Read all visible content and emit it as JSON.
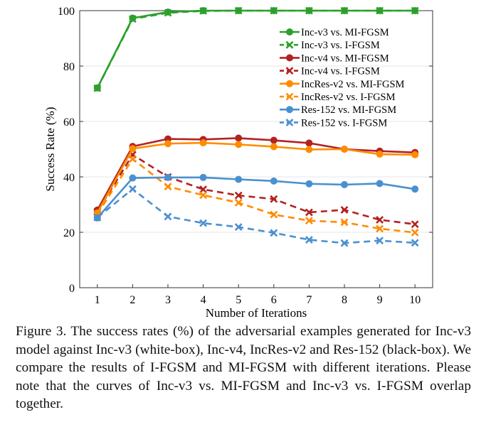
{
  "chart_data": {
    "type": "line",
    "xlabel": "Number of Iterations",
    "ylabel": "Success Rate (%)",
    "x": [
      1,
      2,
      3,
      4,
      5,
      6,
      7,
      8,
      9,
      10
    ],
    "xlim": [
      0.5,
      10.5
    ],
    "ylim": [
      0,
      100
    ],
    "xticks": [
      "1",
      "2",
      "3",
      "4",
      "5",
      "6",
      "7",
      "8",
      "9",
      "10"
    ],
    "yticks": [
      "0",
      "20",
      "40",
      "60",
      "80",
      "100"
    ],
    "grid": true,
    "legend": "top-right",
    "series": [
      {
        "name": "Inc-v3 vs. MI-FGSM",
        "color": "#2ca02c",
        "dash": false,
        "marker": "circle",
        "values": [
          72.1,
          97.3,
          99.5,
          100,
          100,
          100,
          100,
          100,
          100,
          100
        ]
      },
      {
        "name": "Inc-v3 vs. I-FGSM",
        "color": "#2ca02c",
        "dash": true,
        "marker": "x",
        "values": [
          72.0,
          97.0,
          99.2,
          99.9,
          100,
          100,
          100,
          100,
          100,
          100
        ]
      },
      {
        "name": "Inc-v4 vs. MI-FGSM",
        "color": "#b22222",
        "dash": false,
        "marker": "circle",
        "values": [
          28.0,
          51.0,
          53.7,
          53.5,
          54.0,
          53.2,
          52.2,
          50.0,
          49.3,
          48.8
        ]
      },
      {
        "name": "Inc-v4 vs. I-FGSM",
        "color": "#b22222",
        "dash": true,
        "marker": "x",
        "values": [
          27.5,
          48.0,
          40.0,
          35.5,
          33.3,
          32.0,
          27.2,
          28.1,
          24.5,
          22.9
        ]
      },
      {
        "name": "IncRes-v2 vs. MI-FGSM",
        "color": "#ff8c00",
        "dash": false,
        "marker": "circle",
        "values": [
          27.0,
          50.2,
          52.0,
          52.3,
          51.7,
          50.9,
          49.9,
          50.0,
          48.2,
          48.0
        ]
      },
      {
        "name": "IncRes-v2 vs. I-FGSM",
        "color": "#ff8c00",
        "dash": true,
        "marker": "x",
        "values": [
          26.5,
          46.5,
          36.5,
          33.4,
          30.7,
          26.4,
          24.2,
          23.6,
          21.3,
          19.9
        ]
      },
      {
        "name": "Res-152 vs. MI-FGSM",
        "color": "#4a90d0",
        "dash": false,
        "marker": "circle",
        "values": [
          25.2,
          39.6,
          39.8,
          39.8,
          39.1,
          38.5,
          37.5,
          37.2,
          37.6,
          35.6
        ]
      },
      {
        "name": "Res-152 vs. I-FGSM",
        "color": "#4a90d0",
        "dash": true,
        "marker": "x",
        "values": [
          25.3,
          35.6,
          25.7,
          23.3,
          21.9,
          19.8,
          17.3,
          16.1,
          17.0,
          16.2
        ]
      }
    ]
  },
  "caption": "Figure 3. The success rates (%) of the adversarial examples generated for Inc-v3 model against Inc-v3 (white-box), Inc-v4, IncRes-v2 and Res-152 (black-box). We compare the results of I-FGSM and MI-FGSM with different iterations. Please note that the curves of Inc-v3 vs. MI-FGSM and Inc-v3 vs. I-FGSM overlap together."
}
